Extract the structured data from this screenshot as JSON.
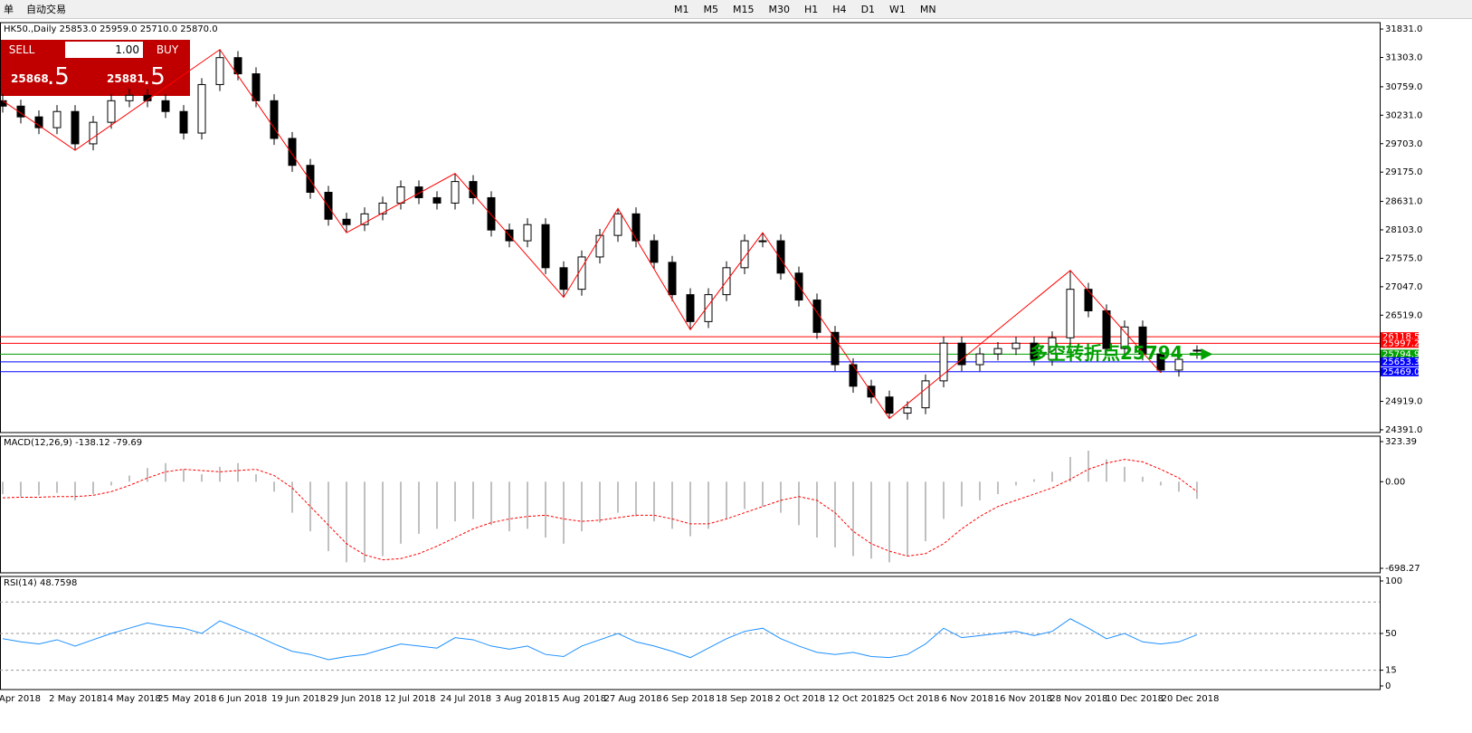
{
  "toolbar": {
    "items": [
      "单",
      "自动交易"
    ],
    "timeframes": [
      "M1",
      "M5",
      "M15",
      "M30",
      "H1",
      "H4",
      "D1",
      "W1",
      "MN"
    ]
  },
  "trade_panel": {
    "sell": "SELL",
    "lot": "1.00",
    "buy": "BUY",
    "bid_main": "25868",
    "bid_frac": ".5",
    "ask_main": "25881",
    "ask_frac": ".5"
  },
  "chart_data": [
    {
      "type": "candlestick",
      "title": "HK50.,Daily 25853.0 25959.0 25710.0 25870.0",
      "x_labels": [
        "Apr 2018",
        "2 May 2018",
        "14 May 2018",
        "25 May 2018",
        "6 Jun 2018",
        "19 Jun 2018",
        "29 Jun 2018",
        "12 Jul 2018",
        "24 Jul 2018",
        "3 Aug 2018",
        "15 Aug 2018",
        "27 Aug 2018",
        "6 Sep 2018",
        "18 Sep 2018",
        "2 Oct 2018",
        "12 Oct 2018",
        "25 Oct 2018",
        "6 Nov 2018",
        "16 Nov 2018",
        "28 Nov 2018",
        "10 Dec 2018",
        "20 Dec 2018"
      ],
      "ylim": [
        24340,
        31950
      ],
      "yticks": [
        {
          "value": 31831,
          "label": "31831.0"
        },
        {
          "value": 31303,
          "label": "31303.0"
        },
        {
          "value": 30759,
          "label": "30759.0"
        },
        {
          "value": 30231,
          "label": "30231.0"
        },
        {
          "value": 29703,
          "label": "29703.0"
        },
        {
          "value": 29175,
          "label": "29175.0"
        },
        {
          "value": 28631,
          "label": "28631.0"
        },
        {
          "value": 28103,
          "label": "28103.0"
        },
        {
          "value": 27575,
          "label": "27575.0"
        },
        {
          "value": 27047,
          "label": "27047.0"
        },
        {
          "value": 26519,
          "label": "26519.0"
        },
        {
          "value": 24919,
          "label": "24919.0"
        },
        {
          "value": 24391,
          "label": "24391.0"
        }
      ],
      "candles": [
        [
          30500,
          30620,
          30280,
          30400
        ],
        [
          30400,
          30520,
          30080,
          30200
        ],
        [
          30200,
          30320,
          29880,
          30000
        ],
        [
          30000,
          30420,
          29880,
          30300
        ],
        [
          30300,
          30420,
          29580,
          29700
        ],
        [
          29700,
          30220,
          29580,
          30100
        ],
        [
          30100,
          30620,
          29980,
          30500
        ],
        [
          30500,
          30720,
          30380,
          30600
        ],
        [
          30600,
          30720,
          30380,
          30500
        ],
        [
          30500,
          30620,
          30180,
          30300
        ],
        [
          30300,
          30420,
          29780,
          29900
        ],
        [
          29900,
          30920,
          29780,
          30800
        ],
        [
          30800,
          31450,
          30680,
          31300
        ],
        [
          31300,
          31420,
          30880,
          31000
        ],
        [
          31000,
          31120,
          30380,
          30500
        ],
        [
          30500,
          30620,
          29680,
          29800
        ],
        [
          29800,
          29920,
          29180,
          29300
        ],
        [
          29300,
          29420,
          28680,
          28800
        ],
        [
          28800,
          28920,
          28180,
          28300
        ],
        [
          28300,
          28420,
          28050,
          28200
        ],
        [
          28200,
          28520,
          28080,
          28400
        ],
        [
          28400,
          28720,
          28280,
          28600
        ],
        [
          28600,
          29020,
          28480,
          28900
        ],
        [
          28900,
          29020,
          28580,
          28700
        ],
        [
          28700,
          28820,
          28480,
          28600
        ],
        [
          28600,
          29150,
          28480,
          29000
        ],
        [
          29000,
          29120,
          28580,
          28700
        ],
        [
          28700,
          28820,
          27980,
          28100
        ],
        [
          28100,
          28220,
          27780,
          27900
        ],
        [
          27900,
          28320,
          27780,
          28200
        ],
        [
          28200,
          28320,
          27280,
          27400
        ],
        [
          27400,
          27520,
          26850,
          27000
        ],
        [
          27000,
          27720,
          26880,
          27600
        ],
        [
          27600,
          28120,
          27480,
          28000
        ],
        [
          28000,
          28500,
          27880,
          28400
        ],
        [
          28400,
          28520,
          27780,
          27900
        ],
        [
          27900,
          28020,
          27380,
          27500
        ],
        [
          27500,
          27620,
          26780,
          26900
        ],
        [
          26900,
          27020,
          26250,
          26400
        ],
        [
          26400,
          27020,
          26280,
          26900
        ],
        [
          26900,
          27520,
          26780,
          27400
        ],
        [
          27400,
          28020,
          27280,
          27900
        ],
        [
          27900,
          28050,
          27780,
          27900
        ],
        [
          27900,
          28020,
          27180,
          27300
        ],
        [
          27300,
          27420,
          26680,
          26800
        ],
        [
          26800,
          26920,
          26080,
          26200
        ],
        [
          26200,
          26320,
          25480,
          25600
        ],
        [
          25600,
          25720,
          25080,
          25200
        ],
        [
          25200,
          25320,
          24880,
          25000
        ],
        [
          25000,
          25120,
          24600,
          24700
        ],
        [
          24700,
          24920,
          24580,
          24800
        ],
        [
          24800,
          25420,
          24680,
          25300
        ],
        [
          25300,
          26120,
          25180,
          26000
        ],
        [
          26000,
          26120,
          25480,
          25600
        ],
        [
          25600,
          25920,
          25480,
          25800
        ],
        [
          25800,
          26020,
          25680,
          25900
        ],
        [
          25900,
          26120,
          25780,
          26000
        ],
        [
          26000,
          26120,
          25580,
          25700
        ],
        [
          25700,
          26220,
          25580,
          26100
        ],
        [
          26100,
          27350,
          25980,
          27000
        ],
        [
          27000,
          27120,
          26480,
          26600
        ],
        [
          26600,
          26720,
          25780,
          25900
        ],
        [
          25900,
          26420,
          25780,
          26300
        ],
        [
          26300,
          26420,
          25680,
          25800
        ],
        [
          25800,
          25920,
          25450,
          25500
        ],
        [
          25500,
          25820,
          25380,
          25700
        ],
        [
          25853,
          25959,
          25710,
          25870
        ]
      ],
      "zigzag": {
        "color": "#ff0000",
        "x": [
          0,
          4,
          12,
          19,
          25,
          31,
          34,
          38,
          42,
          49,
          59,
          64
        ],
        "values": [
          30500,
          29580,
          31450,
          28050,
          29150,
          26850,
          28500,
          26250,
          28050,
          24600,
          27350,
          25450
        ]
      },
      "price_levels": [
        {
          "value": 26118.5,
          "color": "#ff0000"
        },
        {
          "value": 25997.2,
          "color": "#ff0000"
        },
        {
          "value": 25794.9,
          "color": "#00a000"
        },
        {
          "value": 25653.3,
          "color": "#0000ff"
        },
        {
          "value": 25469.0,
          "label": "25469.0",
          "color": "#0000ff"
        }
      ],
      "annotation": "多空转折点25794"
    },
    {
      "type": "macd",
      "title": "MACD(12,26,9) -138.12 -79.69",
      "ylim": [
        -698.27,
        323.39
      ],
      "yticks": [
        323.39,
        {
          "value": 0,
          "label": "0.00"
        },
        -698.27
      ],
      "histogram": [
        -100,
        -120,
        -110,
        -90,
        -150,
        -100,
        -30,
        50,
        110,
        150,
        100,
        60,
        120,
        150,
        60,
        -80,
        -250,
        -400,
        -560,
        -650,
        -650,
        -600,
        -500,
        -420,
        -380,
        -320,
        -300,
        -350,
        -400,
        -380,
        -450,
        -500,
        -400,
        -330,
        -250,
        -280,
        -320,
        -380,
        -440,
        -380,
        -300,
        -220,
        -200,
        -250,
        -350,
        -450,
        -530,
        -600,
        -620,
        -650,
        -600,
        -480,
        -300,
        -200,
        -150,
        -100,
        -30,
        20,
        80,
        200,
        250,
        180,
        120,
        40,
        -30,
        -80,
        -138.12
      ],
      "signal": [
        -130,
        -125,
        -125,
        -120,
        -120,
        -110,
        -80,
        -30,
        30,
        80,
        100,
        90,
        80,
        90,
        100,
        50,
        -50,
        -200,
        -350,
        -500,
        -590,
        -630,
        -620,
        -580,
        -520,
        -450,
        -380,
        -330,
        -300,
        -280,
        -270,
        -300,
        -320,
        -310,
        -290,
        -270,
        -270,
        -300,
        -340,
        -340,
        -300,
        -250,
        -200,
        -150,
        -120,
        -150,
        -250,
        -400,
        -500,
        -560,
        -600,
        -580,
        -500,
        -380,
        -280,
        -200,
        -150,
        -100,
        -50,
        20,
        100,
        150,
        180,
        160,
        100,
        30,
        -79.69
      ],
      "hist_color": "#c0c0c0",
      "signal_color": "#ff0000"
    },
    {
      "type": "rsi",
      "title": "RSI(14) 48.7598",
      "ylim": [
        0,
        100
      ],
      "yticks": [
        100,
        50,
        15,
        0
      ],
      "levels": [
        80,
        50,
        15
      ],
      "values": [
        45,
        42,
        40,
        44,
        38,
        44,
        50,
        55,
        60,
        57,
        55,
        50,
        62,
        55,
        48,
        40,
        33,
        30,
        25,
        28,
        30,
        35,
        40,
        38,
        36,
        46,
        44,
        38,
        35,
        38,
        30,
        28,
        38,
        44,
        50,
        42,
        38,
        33,
        27,
        36,
        45,
        52,
        55,
        45,
        38,
        32,
        30,
        32,
        28,
        27,
        30,
        40,
        55,
        46,
        48,
        50,
        52,
        48,
        52,
        64,
        55,
        45,
        50,
        42,
        40,
        42,
        48.7598
      ],
      "color": "#1e90ff"
    }
  ]
}
